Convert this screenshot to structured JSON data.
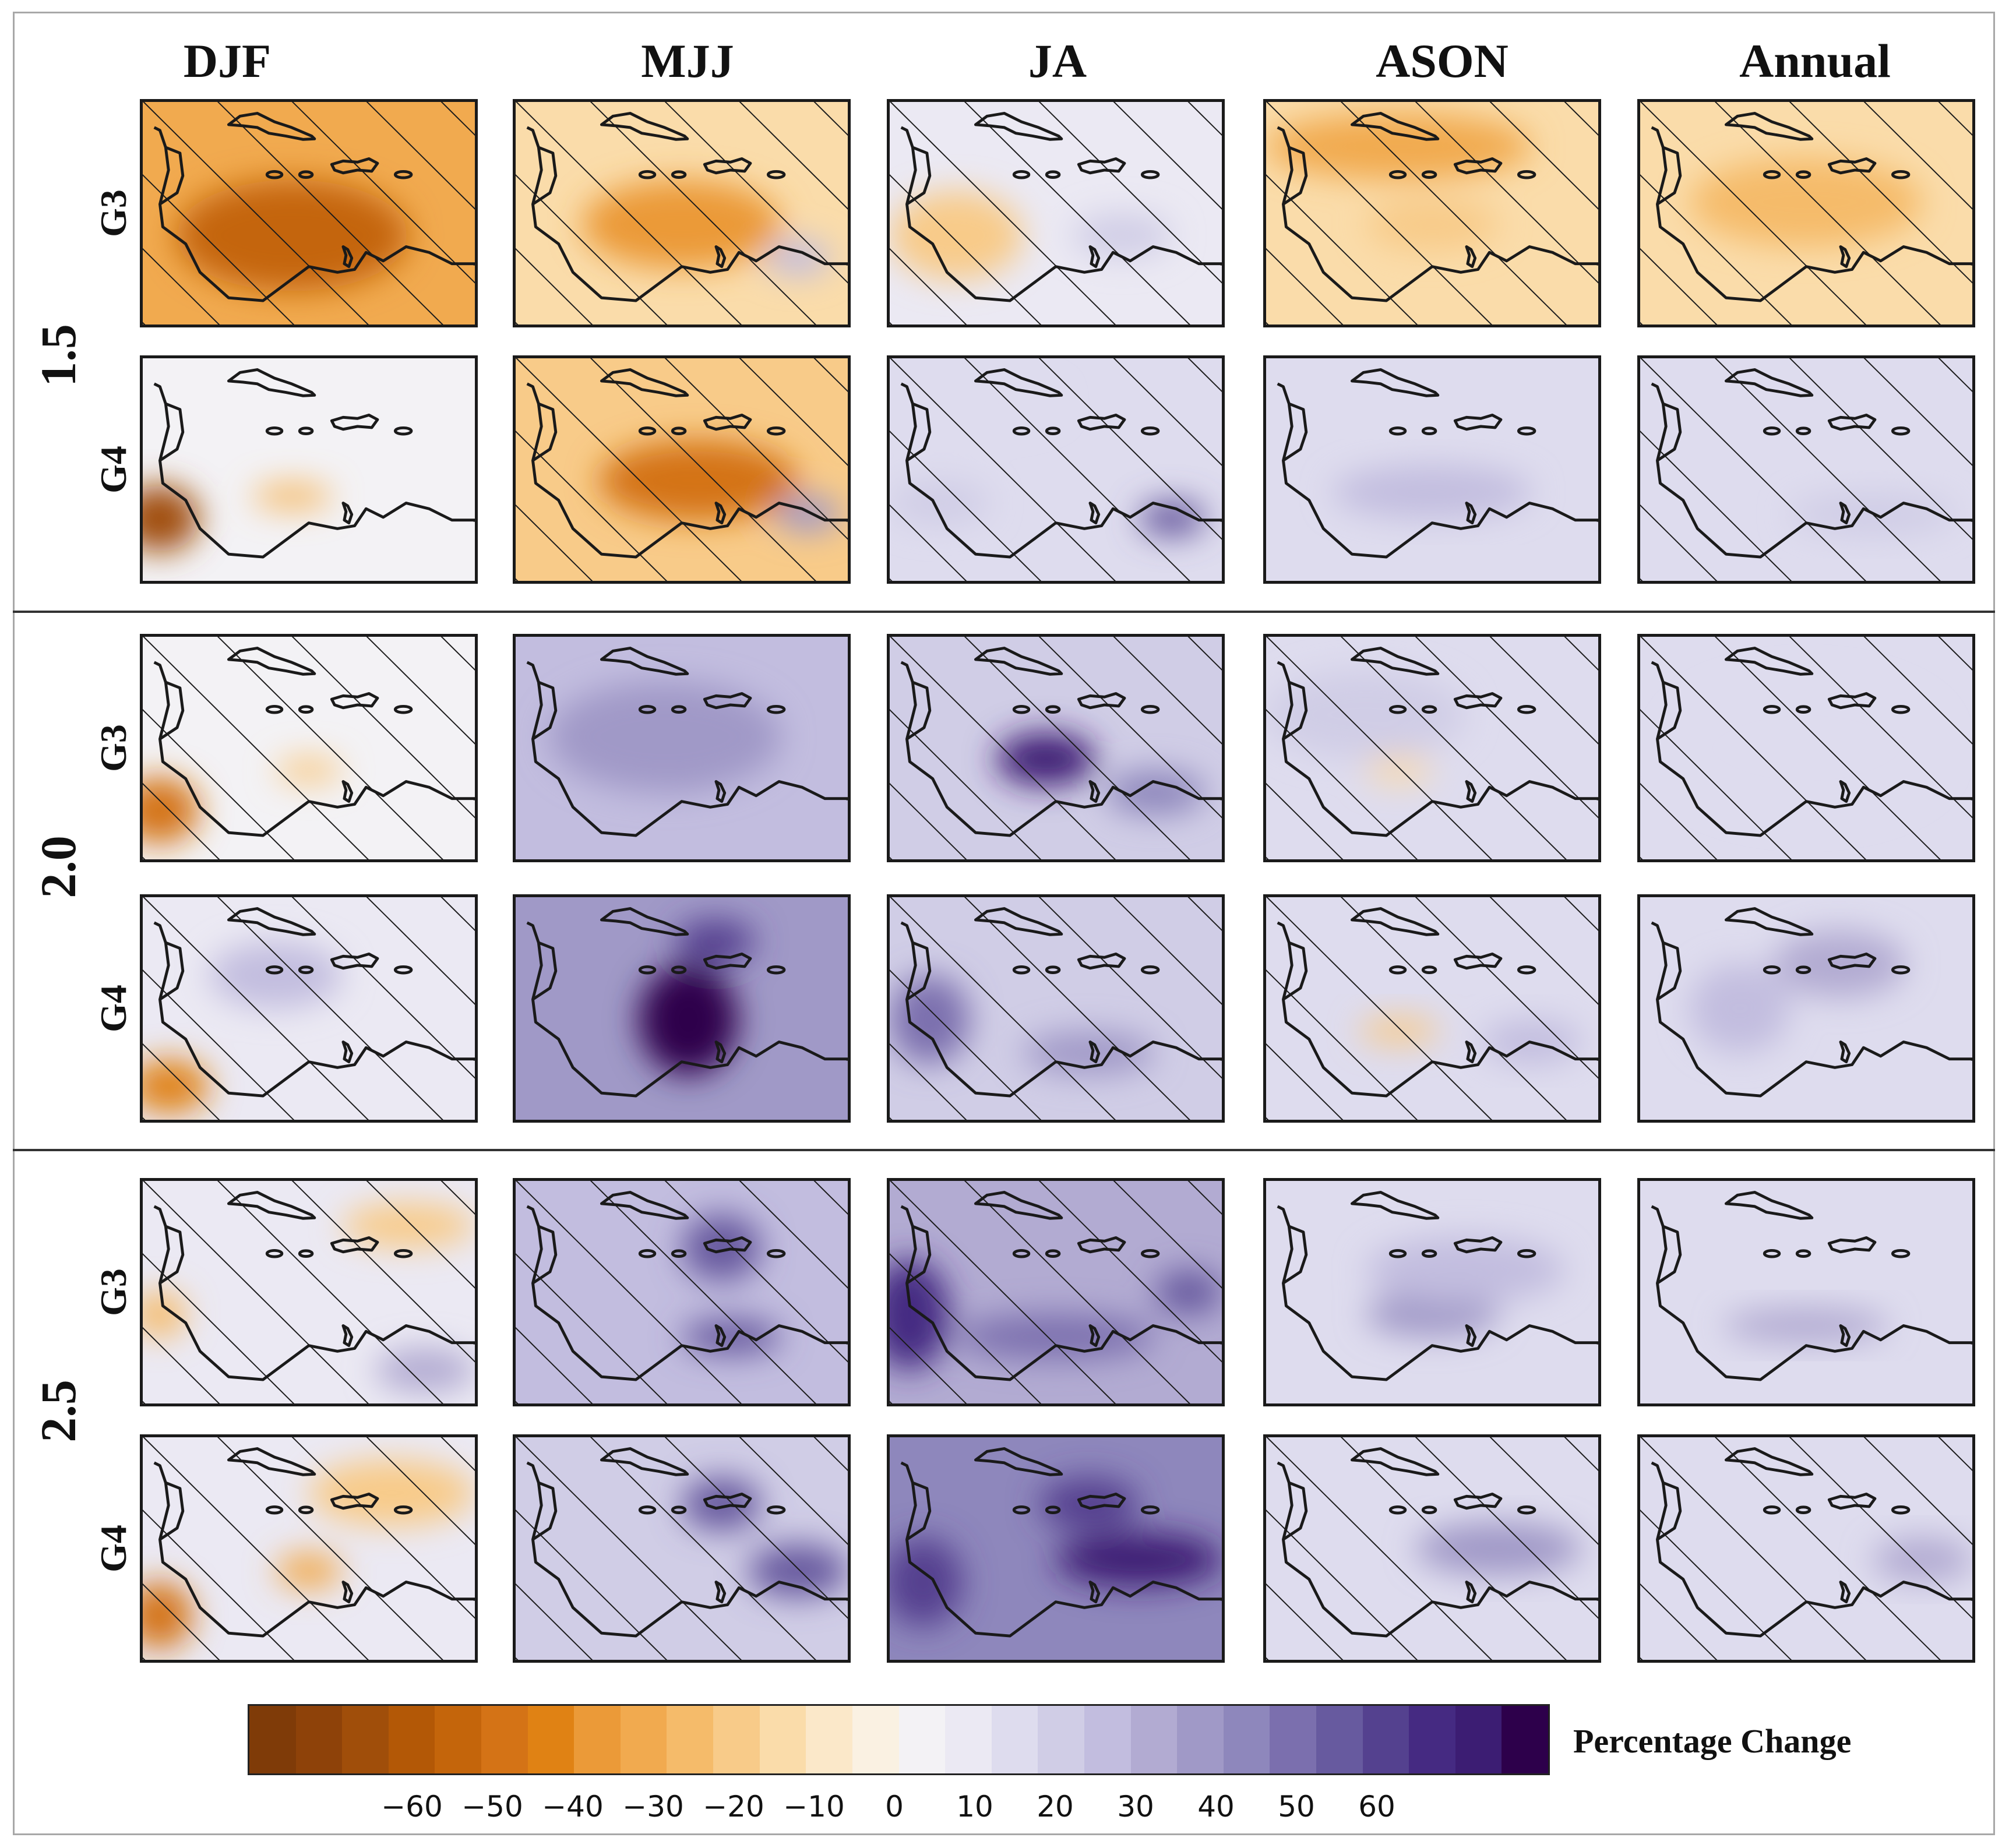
{
  "columns": [
    "DJF",
    "MJJ",
    "JA",
    "ASON",
    "Annual"
  ],
  "levels": [
    {
      "label": "1.5",
      "rows": [
        "G3",
        "G4"
      ]
    },
    {
      "label": "2.0",
      "rows": [
        "G3",
        "G4"
      ]
    },
    {
      "label": "2.5",
      "rows": [
        "G3",
        "G4"
      ]
    }
  ],
  "colorbar": {
    "label": "Percentage Change",
    "ticks": [
      "−60",
      "−50",
      "−40",
      "−30",
      "−20",
      "−10",
      "0",
      "10",
      "20",
      "30",
      "40",
      "50",
      "60"
    ],
    "colors": [
      "#7f3b08",
      "#8e4209",
      "#a04e0a",
      "#b35806",
      "#c4650b",
      "#d47316",
      "#e08214",
      "#eb9a38",
      "#f1aa4f",
      "#f5bb6a",
      "#f8cb89",
      "#fadcaa",
      "#fbe8c9",
      "#faf1e2",
      "#f3f2f5",
      "#ebe9f3",
      "#dedcee",
      "#d0cde6",
      "#c2bddf",
      "#b2abd2",
      "#a099c7",
      "#8e87bc",
      "#7b6fae",
      "#675a9f",
      "#54418f",
      "#452a82",
      "#3c1d73",
      "#2d004b"
    ]
  },
  "anomalies": [
    [
      {
        "v": -28,
        "h": 1,
        "b": [
          [
            0.45,
            0.6,
            -45,
            0.35,
            0.25
          ]
        ]
      },
      {
        "v": -12,
        "h": 1,
        "b": [
          [
            0.5,
            0.55,
            -30,
            0.3,
            0.2
          ],
          [
            0.85,
            0.7,
            20,
            0.1,
            0.08
          ]
        ]
      },
      {
        "v": 6,
        "h": 1,
        "b": [
          [
            0.2,
            0.6,
            -15,
            0.2,
            0.2
          ],
          [
            0.7,
            0.6,
            18,
            0.15,
            0.1
          ]
        ]
      },
      {
        "v": -10,
        "h": 1,
        "b": [
          [
            0.4,
            0.2,
            -25,
            0.4,
            0.15
          ],
          [
            0.5,
            0.55,
            -15,
            0.2,
            0.12
          ]
        ]
      },
      {
        "v": -10,
        "h": 1,
        "b": [
          [
            0.5,
            0.45,
            -20,
            0.35,
            0.2
          ]
        ]
      }
    ],
    [
      {
        "v": 4,
        "h": 0,
        "b": [
          [
            0.05,
            0.72,
            -55,
            0.12,
            0.15
          ],
          [
            0.45,
            0.62,
            -20,
            0.12,
            0.06
          ]
        ]
      },
      {
        "v": -18,
        "h": 1,
        "b": [
          [
            0.55,
            0.55,
            -40,
            0.3,
            0.18
          ],
          [
            0.88,
            0.7,
            30,
            0.1,
            0.08
          ]
        ]
      },
      {
        "v": 10,
        "h": 1,
        "b": [
          [
            0.2,
            0.2,
            12,
            0.3,
            0.1
          ],
          [
            0.85,
            0.72,
            45,
            0.1,
            0.08
          ],
          [
            0.15,
            0.65,
            18,
            0.15,
            0.1
          ]
        ]
      },
      {
        "v": 14,
        "h": 0,
        "b": [
          [
            0.5,
            0.6,
            22,
            0.3,
            0.12
          ]
        ]
      },
      {
        "v": 10,
        "h": 1,
        "b": [
          [
            0.7,
            0.7,
            16,
            0.25,
            0.1
          ]
        ]
      }
    ],
    [
      {
        "v": 4,
        "h": 1,
        "b": [
          [
            0.05,
            0.78,
            -40,
            0.12,
            0.15
          ],
          [
            0.5,
            0.6,
            -18,
            0.1,
            0.06
          ]
        ]
      },
      {
        "v": 22,
        "h": 0,
        "b": [
          [
            0.5,
            0.55,
            60,
            0.15,
            0.15
          ],
          [
            0.45,
            0.45,
            30,
            0.35,
            0.25
          ]
        ]
      },
      {
        "v": 18,
        "h": 1,
        "b": [
          [
            0.47,
            0.55,
            60,
            0.15,
            0.12
          ],
          [
            0.8,
            0.7,
            35,
            0.15,
            0.1
          ]
        ]
      },
      {
        "v": 12,
        "h": 1,
        "b": [
          [
            0.3,
            0.35,
            18,
            0.3,
            0.2
          ],
          [
            0.4,
            0.6,
            -12,
            0.1,
            0.06
          ]
        ]
      },
      {
        "v": 10,
        "h": 1,
        "b": [
          [
            0.5,
            0.5,
            12,
            0.4,
            0.3
          ]
        ]
      }
    ],
    [
      {
        "v": 8,
        "h": 1,
        "b": [
          [
            0.08,
            0.85,
            -38,
            0.12,
            0.12
          ],
          [
            0.4,
            0.35,
            20,
            0.2,
            0.15
          ]
        ]
      },
      {
        "v": 30,
        "h": 0,
        "b": [
          [
            0.52,
            0.55,
            65,
            0.15,
            0.25
          ],
          [
            0.6,
            0.2,
            50,
            0.12,
            0.1
          ]
        ]
      },
      {
        "v": 18,
        "h": 1,
        "b": [
          [
            0.12,
            0.55,
            40,
            0.12,
            0.2
          ],
          [
            0.6,
            0.7,
            30,
            0.2,
            0.1
          ]
        ]
      },
      {
        "v": 10,
        "h": 1,
        "b": [
          [
            0.4,
            0.6,
            -15,
            0.12,
            0.06
          ],
          [
            0.8,
            0.65,
            22,
            0.15,
            0.1
          ]
        ]
      },
      {
        "v": 14,
        "h": 0,
        "b": [
          [
            0.6,
            0.3,
            25,
            0.2,
            0.15
          ],
          [
            0.3,
            0.5,
            20,
            0.15,
            0.2
          ]
        ]
      }
    ],
    [
      {
        "v": 8,
        "h": 1,
        "b": [
          [
            0.05,
            0.6,
            -20,
            0.08,
            0.1
          ],
          [
            0.85,
            0.85,
            28,
            0.15,
            0.1
          ],
          [
            0.8,
            0.2,
            -15,
            0.2,
            0.1
          ]
        ]
      },
      {
        "v": 22,
        "h": 1,
        "b": [
          [
            0.62,
            0.3,
            45,
            0.12,
            0.15
          ],
          [
            0.65,
            0.7,
            45,
            0.15,
            0.08
          ]
        ]
      },
      {
        "v": 26,
        "h": 1,
        "b": [
          [
            0.06,
            0.6,
            55,
            0.12,
            0.25
          ],
          [
            0.5,
            0.7,
            40,
            0.3,
            0.1
          ],
          [
            0.9,
            0.5,
            45,
            0.1,
            0.1
          ]
        ]
      },
      {
        "v": 14,
        "h": 0,
        "b": [
          [
            0.5,
            0.6,
            30,
            0.2,
            0.1
          ],
          [
            0.6,
            0.4,
            20,
            0.3,
            0.15
          ]
        ]
      },
      {
        "v": 12,
        "h": 0,
        "b": [
          [
            0.5,
            0.65,
            24,
            0.25,
            0.08
          ]
        ]
      }
    ],
    [
      {
        "v": 6,
        "h": 1,
        "b": [
          [
            0.05,
            0.8,
            -40,
            0.1,
            0.15
          ],
          [
            0.5,
            0.6,
            -25,
            0.1,
            0.08
          ],
          [
            0.75,
            0.25,
            -18,
            0.25,
            0.15
          ]
        ]
      },
      {
        "v": 18,
        "h": 1,
        "b": [
          [
            0.62,
            0.3,
            45,
            0.12,
            0.12
          ],
          [
            0.85,
            0.6,
            45,
            0.15,
            0.12
          ]
        ]
      },
      {
        "v": 34,
        "h": 0,
        "b": [
          [
            0.75,
            0.55,
            60,
            0.25,
            0.12
          ],
          [
            0.1,
            0.65,
            50,
            0.12,
            0.2
          ],
          [
            0.6,
            0.3,
            50,
            0.15,
            0.12
          ]
        ]
      },
      {
        "v": 14,
        "h": 1,
        "b": [
          [
            0.7,
            0.5,
            30,
            0.25,
            0.12
          ]
        ]
      },
      {
        "v": 12,
        "h": 1,
        "b": [
          [
            0.85,
            0.55,
            28,
            0.15,
            0.1
          ]
        ]
      }
    ]
  ]
}
